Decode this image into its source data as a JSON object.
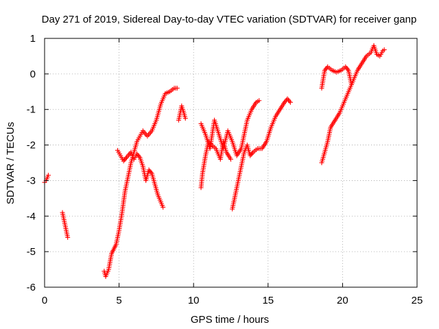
{
  "chart_data": {
    "type": "scatter",
    "title": "Day 271 of 2019, Sidereal Day-to-day VTEC variation (SDTVAR) for receiver ganp",
    "xlabel": "GPS time / hours",
    "ylabel": "SDTVAR / TECUs",
    "xlim": [
      0,
      25
    ],
    "ylim": [
      -6,
      1
    ],
    "xticks": [
      0,
      5,
      10,
      15,
      20,
      25
    ],
    "xtick_labels": [
      "0",
      "5",
      "10",
      "15",
      "20",
      "25"
    ],
    "yticks": [
      -6,
      -5,
      -4,
      -3,
      -2,
      -1,
      0,
      1
    ],
    "ytick_labels": [
      "-6",
      "-5",
      "-4",
      "-3",
      "-2",
      "-1",
      "0",
      "1"
    ],
    "grid": true,
    "marker": "plus",
    "color": "#ff0000",
    "segments": [
      {
        "name": "arc-1",
        "points": [
          [
            0.0,
            -3.05
          ],
          [
            0.1,
            -3.0
          ],
          [
            0.2,
            -2.9
          ],
          [
            0.25,
            -2.85
          ]
        ]
      },
      {
        "name": "arc-2",
        "points": [
          [
            1.2,
            -3.9
          ],
          [
            1.3,
            -4.1
          ],
          [
            1.4,
            -4.3
          ],
          [
            1.5,
            -4.5
          ],
          [
            1.55,
            -4.6
          ]
        ]
      },
      {
        "name": "arc-3",
        "points": [
          [
            4.0,
            -5.55
          ],
          [
            4.1,
            -5.7
          ],
          [
            4.3,
            -5.5
          ],
          [
            4.5,
            -5.05
          ],
          [
            4.8,
            -4.8
          ],
          [
            5.0,
            -4.4
          ],
          [
            5.2,
            -3.9
          ],
          [
            5.4,
            -3.3
          ],
          [
            5.6,
            -2.9
          ],
          [
            5.8,
            -2.5
          ],
          [
            6.0,
            -2.2
          ],
          [
            6.2,
            -1.9
          ],
          [
            6.4,
            -1.75
          ],
          [
            6.6,
            -1.6
          ],
          [
            6.9,
            -1.75
          ],
          [
            7.2,
            -1.6
          ],
          [
            7.5,
            -1.3
          ],
          [
            7.8,
            -0.85
          ],
          [
            8.1,
            -0.55
          ],
          [
            8.4,
            -0.5
          ],
          [
            8.7,
            -0.4
          ],
          [
            8.9,
            -0.4
          ]
        ]
      },
      {
        "name": "arc-4",
        "points": [
          [
            4.9,
            -2.15
          ],
          [
            5.1,
            -2.3
          ],
          [
            5.3,
            -2.45
          ],
          [
            5.5,
            -2.35
          ],
          [
            5.8,
            -2.2
          ],
          [
            6.0,
            -2.4
          ],
          [
            6.2,
            -2.25
          ],
          [
            6.4,
            -2.35
          ],
          [
            6.6,
            -2.6
          ],
          [
            6.8,
            -3.0
          ],
          [
            7.0,
            -2.7
          ],
          [
            7.2,
            -2.8
          ],
          [
            7.4,
            -3.1
          ],
          [
            7.6,
            -3.4
          ],
          [
            7.8,
            -3.6
          ],
          [
            7.95,
            -3.75
          ]
        ]
      },
      {
        "name": "arc-5",
        "points": [
          [
            9.0,
            -1.3
          ],
          [
            9.2,
            -0.9
          ],
          [
            9.35,
            -1.1
          ],
          [
            9.45,
            -1.25
          ]
        ]
      },
      {
        "name": "arc-6",
        "points": [
          [
            10.5,
            -3.2
          ],
          [
            10.6,
            -2.8
          ],
          [
            10.8,
            -2.3
          ],
          [
            11.0,
            -1.9
          ],
          [
            11.2,
            -2.0
          ],
          [
            11.5,
            -2.1
          ],
          [
            11.8,
            -2.4
          ],
          [
            12.0,
            -1.9
          ],
          [
            12.2,
            -2.2
          ],
          [
            12.5,
            -2.4
          ]
        ]
      },
      {
        "name": "arc-7",
        "points": [
          [
            10.5,
            -1.4
          ],
          [
            10.8,
            -1.7
          ],
          [
            11.1,
            -2.1
          ],
          [
            11.4,
            -1.3
          ],
          [
            11.7,
            -1.7
          ],
          [
            12.0,
            -2.1
          ],
          [
            12.3,
            -1.6
          ],
          [
            12.6,
            -1.9
          ],
          [
            12.9,
            -2.3
          ],
          [
            13.2,
            -2.1
          ],
          [
            13.6,
            -1.3
          ],
          [
            13.9,
            -1.0
          ],
          [
            14.2,
            -0.8
          ],
          [
            14.4,
            -0.75
          ]
        ]
      },
      {
        "name": "arc-8",
        "points": [
          [
            12.6,
            -3.8
          ],
          [
            12.8,
            -3.4
          ],
          [
            13.0,
            -3.0
          ],
          [
            13.2,
            -2.6
          ],
          [
            13.4,
            -2.2
          ],
          [
            13.6,
            -2.0
          ],
          [
            13.8,
            -2.3
          ],
          [
            14.0,
            -2.2
          ],
          [
            14.3,
            -2.1
          ],
          [
            14.6,
            -2.1
          ],
          [
            14.9,
            -1.9
          ],
          [
            15.2,
            -1.5
          ],
          [
            15.5,
            -1.2
          ],
          [
            15.8,
            -1.0
          ],
          [
            16.1,
            -0.8
          ],
          [
            16.3,
            -0.7
          ],
          [
            16.5,
            -0.8
          ]
        ]
      },
      {
        "name": "arc-9",
        "points": [
          [
            18.6,
            -0.4
          ],
          [
            18.8,
            0.1
          ],
          [
            19.0,
            0.2
          ],
          [
            19.3,
            0.1
          ],
          [
            19.6,
            0.05
          ],
          [
            19.9,
            0.1
          ],
          [
            20.2,
            0.2
          ],
          [
            20.4,
            0.1
          ],
          [
            20.5,
            -0.1
          ],
          [
            20.6,
            -0.3
          ]
        ]
      },
      {
        "name": "arc-10",
        "points": [
          [
            18.6,
            -2.5
          ],
          [
            18.8,
            -2.2
          ],
          [
            19.0,
            -1.9
          ],
          [
            19.2,
            -1.5
          ],
          [
            19.5,
            -1.3
          ],
          [
            19.8,
            -1.1
          ],
          [
            20.1,
            -0.8
          ],
          [
            20.4,
            -0.5
          ],
          [
            20.7,
            -0.2
          ],
          [
            21.0,
            0.1
          ],
          [
            21.3,
            0.3
          ],
          [
            21.6,
            0.5
          ],
          [
            21.9,
            0.6
          ],
          [
            22.1,
            0.8
          ],
          [
            22.3,
            0.55
          ],
          [
            22.5,
            0.5
          ],
          [
            22.7,
            0.65
          ],
          [
            22.8,
            0.68
          ]
        ]
      }
    ]
  }
}
